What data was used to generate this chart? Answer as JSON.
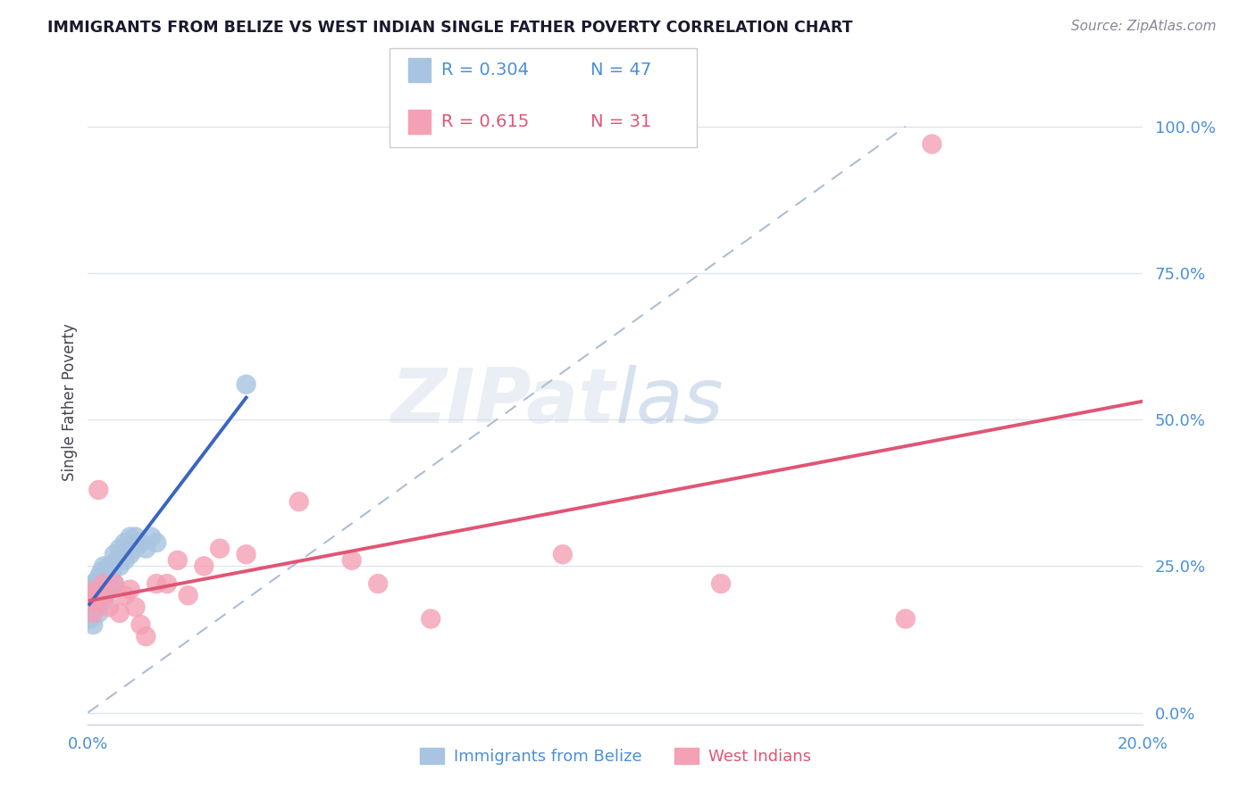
{
  "title": "IMMIGRANTS FROM BELIZE VS WEST INDIAN SINGLE FATHER POVERTY CORRELATION CHART",
  "source": "Source: ZipAtlas.com",
  "ylabel": "Single Father Poverty",
  "ytick_labels": [
    "0.0%",
    "25.0%",
    "50.0%",
    "75.0%",
    "100.0%"
  ],
  "ytick_values": [
    0.0,
    0.25,
    0.5,
    0.75,
    1.0
  ],
  "xlim": [
    0.0,
    0.2
  ],
  "ylim": [
    -0.02,
    1.08
  ],
  "watermark_text": "ZIPatlas",
  "legend_blue_r": "R = 0.304",
  "legend_blue_n": "N = 47",
  "legend_pink_r": "R = 0.615",
  "legend_pink_n": "N = 31",
  "blue_color": "#a8c4e0",
  "pink_color": "#f4a0b5",
  "blue_line_color": "#3a65c0",
  "pink_line_color": "#e05575",
  "dash_line_color": "#adbdd4",
  "grid_color": "#dde3ee",
  "bottom_spine_color": "#c8cfe0",
  "title_color": "#1a1a2e",
  "ylabel_color": "#444455",
  "tick_color": "#4a90d9",
  "source_color": "#888899",
  "blue_x": [
    0.0003,
    0.0005,
    0.0007,
    0.0008,
    0.001,
    0.001,
    0.001,
    0.0012,
    0.0013,
    0.0015,
    0.0016,
    0.0017,
    0.0018,
    0.002,
    0.002,
    0.002,
    0.0022,
    0.0024,
    0.0025,
    0.0027,
    0.003,
    0.003,
    0.003,
    0.0032,
    0.0033,
    0.0035,
    0.004,
    0.004,
    0.0042,
    0.0045,
    0.005,
    0.005,
    0.0055,
    0.006,
    0.006,
    0.007,
    0.007,
    0.008,
    0.008,
    0.009,
    0.009,
    0.01,
    0.011,
    0.012,
    0.013,
    0.03,
    0.0004
  ],
  "blue_y": [
    0.17,
    0.19,
    0.21,
    0.18,
    0.2,
    0.22,
    0.15,
    0.2,
    0.21,
    0.19,
    0.22,
    0.18,
    0.2,
    0.21,
    0.23,
    0.17,
    0.22,
    0.2,
    0.24,
    0.21,
    0.23,
    0.25,
    0.19,
    0.22,
    0.2,
    0.24,
    0.22,
    0.25,
    0.21,
    0.24,
    0.22,
    0.27,
    0.26,
    0.25,
    0.28,
    0.26,
    0.29,
    0.27,
    0.3,
    0.28,
    0.3,
    0.29,
    0.28,
    0.3,
    0.29,
    0.56,
    0.16
  ],
  "pink_x": [
    0.0004,
    0.0008,
    0.001,
    0.0015,
    0.002,
    0.002,
    0.003,
    0.003,
    0.004,
    0.005,
    0.006,
    0.007,
    0.008,
    0.009,
    0.01,
    0.011,
    0.013,
    0.015,
    0.017,
    0.019,
    0.022,
    0.025,
    0.03,
    0.04,
    0.05,
    0.055,
    0.065,
    0.09,
    0.12,
    0.155,
    0.16
  ],
  "pink_y": [
    0.2,
    0.19,
    0.17,
    0.21,
    0.19,
    0.38,
    0.22,
    0.2,
    0.18,
    0.22,
    0.17,
    0.2,
    0.21,
    0.18,
    0.15,
    0.13,
    0.22,
    0.22,
    0.26,
    0.2,
    0.25,
    0.28,
    0.27,
    0.36,
    0.26,
    0.22,
    0.16,
    0.27,
    0.22,
    0.16,
    0.97
  ],
  "blue_line_x": [
    0.0003,
    0.03
  ],
  "pink_line_x": [
    0.0004,
    0.2
  ],
  "dash_line_points": [
    [
      0.0,
      0.0
    ],
    [
      0.155,
      1.0
    ]
  ]
}
